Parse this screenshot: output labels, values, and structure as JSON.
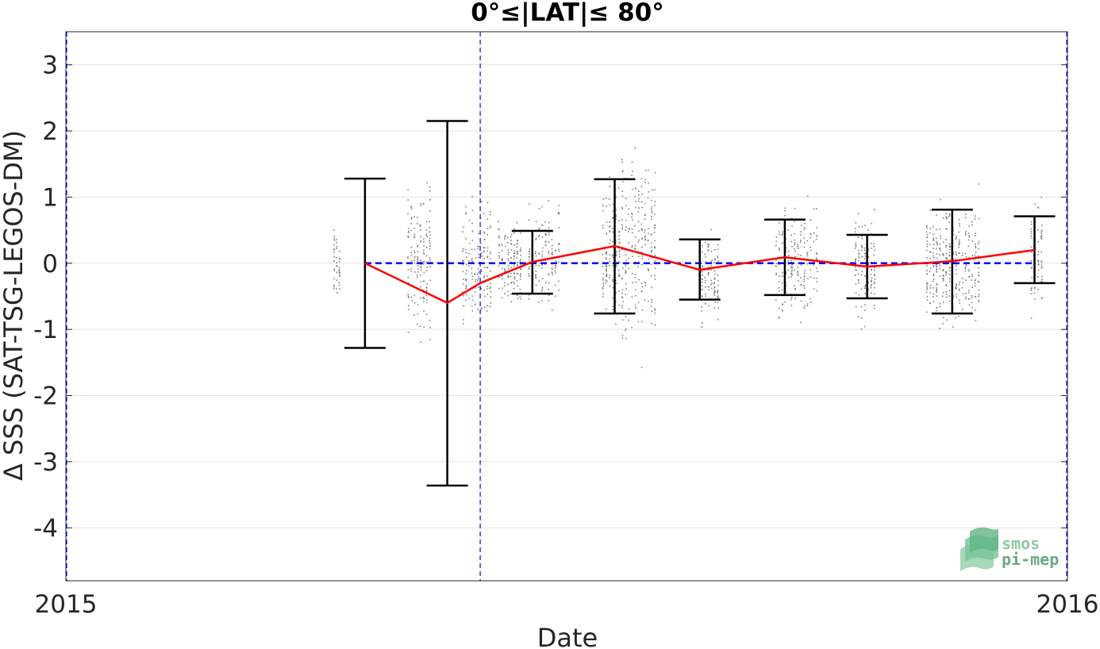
{
  "chart_data": {
    "type": "scatter",
    "title": "0°≤|LAT|≤ 80°",
    "xlabel": "Date",
    "ylabel": "Δ SSS (SAT-TSG-LEGOS-DM)",
    "x_tick_labels": [
      "2015",
      "2016"
    ],
    "y_tick_labels": [
      "3",
      "2",
      "1",
      "0",
      "-1",
      "-2",
      "-3",
      "-4"
    ],
    "y_ticks": [
      3,
      2,
      1,
      0,
      -1,
      -2,
      -3,
      -4
    ],
    "ylim": [
      -4.8,
      3.5
    ],
    "xlim": [
      "2015-01-01",
      "2016-01-01"
    ],
    "grid": "horizontal",
    "reference_line": {
      "y": 0,
      "style": "dashed",
      "color": "#0000ff"
    },
    "vertical_markers": [
      "2015-01-01",
      "2015-06-01",
      "2016-01-01"
    ],
    "mean_series": {
      "color": "#ff0000",
      "points": [
        {
          "x": "2015-04-20",
          "y": 0.0
        },
        {
          "x": "2015-05-20",
          "y": -0.6
        },
        {
          "x": "2015-06-01",
          "y": -0.3
        },
        {
          "x": "2015-06-20",
          "y": 0.02
        },
        {
          "x": "2015-07-20",
          "y": 0.26
        },
        {
          "x": "2015-08-20",
          "y": -0.1
        },
        {
          "x": "2015-09-20",
          "y": 0.09
        },
        {
          "x": "2015-10-20",
          "y": -0.05
        },
        {
          "x": "2015-11-20",
          "y": 0.03
        },
        {
          "x": "2015-12-20",
          "y": 0.2
        }
      ]
    },
    "error_bars": [
      {
        "x": "2015-04-20",
        "low": -1.28,
        "high": 1.28
      },
      {
        "x": "2015-05-20",
        "low": -3.36,
        "high": 2.15
      },
      {
        "x": "2015-06-20",
        "low": -0.46,
        "high": 0.49
      },
      {
        "x": "2015-07-20",
        "low": -0.76,
        "high": 1.27
      },
      {
        "x": "2015-08-20",
        "low": -0.55,
        "high": 0.36
      },
      {
        "x": "2015-09-20",
        "low": -0.48,
        "high": 0.66
      },
      {
        "x": "2015-10-20",
        "low": -0.53,
        "high": 0.43
      },
      {
        "x": "2015-11-20",
        "low": -0.76,
        "high": 0.81
      },
      {
        "x": "2015-12-20",
        "low": -0.3,
        "high": 0.71
      }
    ],
    "scatter_clusters": [
      {
        "x_start": "2015-04-08",
        "x_end": "2015-04-11",
        "center": -0.05,
        "spread": 0.25,
        "count": 45
      },
      {
        "x_start": "2015-05-05",
        "x_end": "2015-05-14",
        "center": 0.1,
        "spread": 0.5,
        "count": 160
      },
      {
        "x_start": "2015-05-25",
        "x_end": "2015-06-05",
        "center": 0.0,
        "spread": 0.45,
        "count": 150
      },
      {
        "x_start": "2015-06-07",
        "x_end": "2015-06-16",
        "center": 0.0,
        "spread": 0.3,
        "count": 140
      },
      {
        "x_start": "2015-06-18",
        "x_end": "2015-06-30",
        "center": 0.1,
        "spread": 0.35,
        "count": 150
      },
      {
        "x_start": "2015-07-15",
        "x_end": "2015-07-22",
        "center": 0.2,
        "spread": 0.45,
        "count": 120
      },
      {
        "x_start": "2015-07-22",
        "x_end": "2015-08-04",
        "center": 0.25,
        "spread": 0.7,
        "count": 220
      },
      {
        "x_start": "2015-08-20",
        "x_end": "2015-08-27",
        "center": -0.2,
        "spread": 0.3,
        "count": 100
      },
      {
        "x_start": "2015-09-16",
        "x_end": "2015-10-02",
        "center": 0.05,
        "spread": 0.4,
        "count": 200
      },
      {
        "x_start": "2015-10-15",
        "x_end": "2015-10-23",
        "center": -0.05,
        "spread": 0.35,
        "count": 120
      },
      {
        "x_start": "2015-11-10",
        "x_end": "2015-11-30",
        "center": 0.0,
        "spread": 0.45,
        "count": 320
      },
      {
        "x_start": "2015-12-18",
        "x_end": "2015-12-23",
        "center": 0.1,
        "spread": 0.35,
        "count": 90
      }
    ],
    "scatter_color": "#7f7f7f"
  },
  "logo": {
    "line1": "smos",
    "line2": "pi-mep"
  }
}
